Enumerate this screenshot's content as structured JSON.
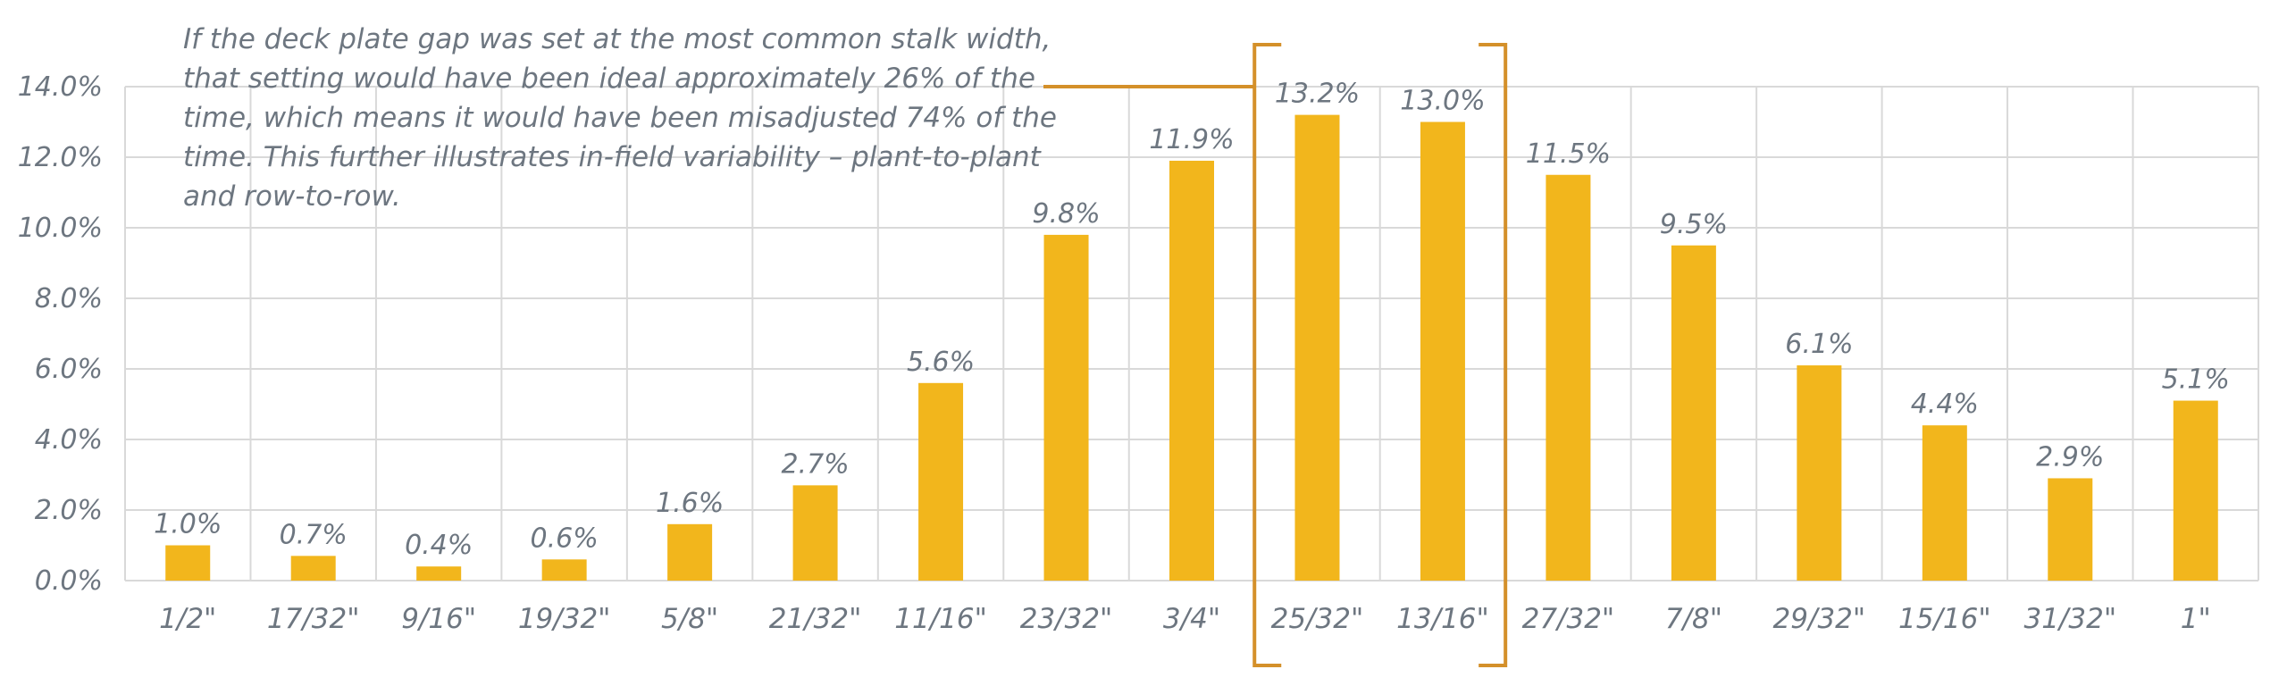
{
  "chart_data": {
    "type": "bar",
    "categories": [
      "1/2\"",
      "17/32\"",
      "9/16\"",
      "19/32\"",
      "5/8\"",
      "21/32\"",
      "11/16\"",
      "23/32\"",
      "3/4\"",
      "25/32\"",
      "13/16\"",
      "27/32\"",
      "7/8\"",
      "29/32\"",
      "15/16\"",
      "31/32\"",
      "1\""
    ],
    "values": [
      1.0,
      0.7,
      0.4,
      0.6,
      1.6,
      2.7,
      5.6,
      9.8,
      11.9,
      13.2,
      13.0,
      11.5,
      9.5,
      6.1,
      4.4,
      2.9,
      5.1
    ],
    "data_labels": [
      "1.0%",
      "0.7%",
      "0.4%",
      "0.6%",
      "1.6%",
      "2.7%",
      "5.6%",
      "9.8%",
      "11.9%",
      "13.2%",
      "13.0%",
      "11.5%",
      "9.5%",
      "6.1%",
      "4.4%",
      "2.9%",
      "5.1%"
    ],
    "y_ticks": [
      0,
      2,
      4,
      6,
      8,
      10,
      12,
      14
    ],
    "y_tick_labels": [
      "0.0%",
      "2.0%",
      "4.0%",
      "6.0%",
      "8.0%",
      "10.0%",
      "12.0%",
      "14.0%"
    ],
    "ylim": [
      0,
      14
    ],
    "grid": true,
    "title": "",
    "xlabel": "",
    "ylabel": "",
    "highlighted_categories": [
      "25/32\"",
      "13/16\""
    ],
    "annotation": "If the deck plate gap was set at the most common stalk width, that setting would have been ideal approximately 26% of the time, which means it would have been misadjusted 74% of the time. This further illustrates in-field variability – plant-to-plant and row-to-row.",
    "colors": {
      "bar": "#f2b61c",
      "bracket": "#d4902a",
      "grid": "#d9d9d9",
      "text": "#6d7680"
    }
  }
}
